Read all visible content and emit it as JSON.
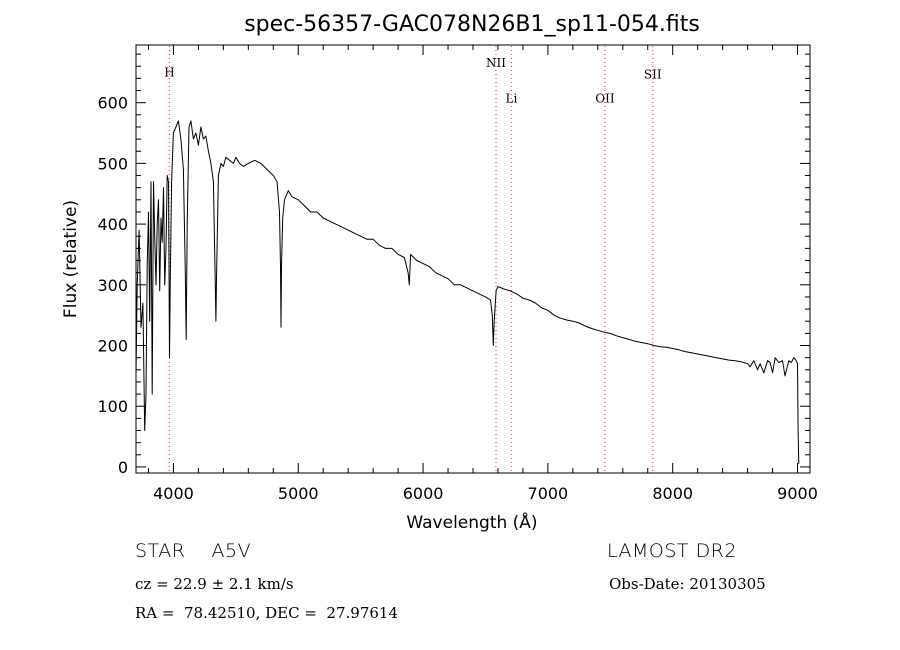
{
  "chart_data": {
    "type": "line",
    "title": "spec-56357-GAC078N26B1_sp11-054.fits",
    "xlabel": "Wavelength (Å)",
    "ylabel": "Flux (relative)",
    "xlim": [
      3700,
      9100
    ],
    "ylim": [
      -10,
      695
    ],
    "xticks": [
      4000,
      5000,
      6000,
      7000,
      8000,
      9000
    ],
    "yticks": [
      0,
      100,
      200,
      300,
      400,
      500,
      600
    ],
    "grid": false,
    "series": [
      {
        "x": [
          3700,
          3710,
          3725,
          3740,
          3755,
          3770,
          3780,
          3790,
          3800,
          3810,
          3820,
          3830,
          3840,
          3850,
          3860,
          3870,
          3880,
          3890,
          3900,
          3910,
          3920,
          3930,
          3940,
          3950,
          3960,
          3968,
          3975,
          3985,
          4000,
          4020,
          4040,
          4060,
          4080,
          4095,
          4102,
          4110,
          4125,
          4140,
          4160,
          4180,
          4200,
          4220,
          4240,
          4260,
          4280,
          4300,
          4320,
          4335,
          4340,
          4345,
          4360,
          4380,
          4400,
          4420,
          4450,
          4480,
          4500,
          4530,
          4560,
          4600,
          4650,
          4700,
          4750,
          4800,
          4830,
          4850,
          4858,
          4862,
          4866,
          4875,
          4890,
          4920,
          4950,
          5000,
          5050,
          5100,
          5150,
          5200,
          5250,
          5300,
          5350,
          5400,
          5450,
          5500,
          5550,
          5600,
          5650,
          5700,
          5750,
          5800,
          5850,
          5880,
          5890,
          5900,
          5950,
          6000,
          6050,
          6100,
          6150,
          6200,
          6250,
          6300,
          6350,
          6400,
          6450,
          6500,
          6540,
          6555,
          6563,
          6570,
          6585,
          6600,
          6650,
          6700,
          6750,
          6800,
          6850,
          6900,
          6950,
          7000,
          7050,
          7100,
          7150,
          7200,
          7250,
          7300,
          7350,
          7400,
          7450,
          7500,
          7550,
          7600,
          7650,
          7700,
          7750,
          7800,
          7850,
          7900,
          7950,
          8000,
          8050,
          8100,
          8150,
          8200,
          8250,
          8300,
          8350,
          8400,
          8450,
          8500,
          8550,
          8600,
          8620,
          8650,
          8680,
          8700,
          8730,
          8760,
          8780,
          8800,
          8820,
          8850,
          8880,
          8900,
          8930,
          8950,
          8970,
          8990,
          9000,
          9005,
          9010
        ],
        "y": [
          150,
          300,
          390,
          230,
          270,
          60,
          120,
          330,
          420,
          240,
          470,
          120,
          470,
          380,
          300,
          400,
          440,
          290,
          410,
          370,
          460,
          300,
          360,
          480,
          470,
          180,
          310,
          470,
          550,
          560,
          570,
          540,
          490,
          320,
          210,
          400,
          560,
          570,
          540,
          550,
          530,
          560,
          540,
          545,
          520,
          500,
          470,
          300,
          240,
          310,
          480,
          500,
          495,
          510,
          505,
          500,
          510,
          500,
          495,
          500,
          505,
          500,
          490,
          480,
          470,
          420,
          330,
          230,
          330,
          410,
          440,
          455,
          445,
          440,
          430,
          420,
          420,
          410,
          405,
          400,
          395,
          390,
          385,
          380,
          375,
          375,
          365,
          360,
          360,
          350,
          345,
          320,
          300,
          350,
          340,
          335,
          330,
          320,
          315,
          310,
          300,
          300,
          295,
          290,
          285,
          280,
          275,
          250,
          200,
          240,
          290,
          297,
          293,
          290,
          285,
          278,
          275,
          270,
          262,
          258,
          250,
          245,
          242,
          240,
          237,
          232,
          228,
          225,
          222,
          220,
          216,
          213,
          210,
          207,
          205,
          203,
          200,
          198,
          197,
          195,
          193,
          190,
          188,
          186,
          184,
          182,
          180,
          178,
          176,
          175,
          173,
          170,
          165,
          175,
          160,
          170,
          155,
          175,
          172,
          155,
          180,
          172,
          175,
          150,
          175,
          172,
          180,
          175,
          170,
          60,
          5
        ]
      }
    ],
    "annotations": [
      {
        "label": "H",
        "x": 3968,
        "y": 650
      },
      {
        "label": "NII",
        "x": 6584,
        "y": 665
      },
      {
        "label": "Li",
        "x": 6708,
        "y": 607
      },
      {
        "label": "OII",
        "x": 7457,
        "y": 607
      },
      {
        "label": "SII",
        "x": 7840,
        "y": 646
      }
    ]
  },
  "info": {
    "class_line": "STAR    A5V",
    "survey": "LAMOST DR2",
    "cz": "cz = 22.9 ± 2.1 km/s",
    "obs_date": "Obs-Date: 20130305",
    "coords": "RA =  78.42510, DEC =  27.97614"
  }
}
